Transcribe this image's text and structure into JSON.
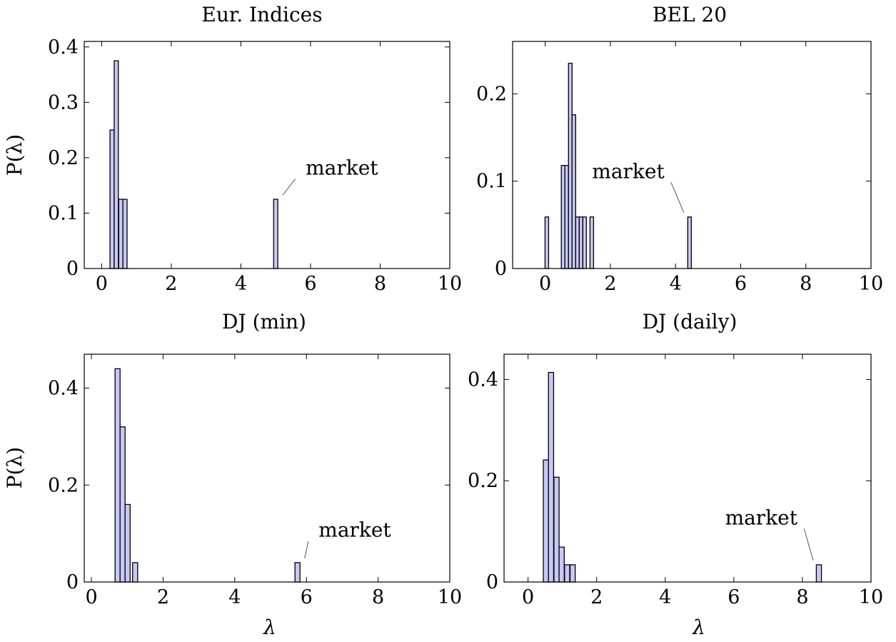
{
  "colors": {
    "bar_fill": "#c8c8f7",
    "bar_stroke": "#000000",
    "leader": "#555555"
  },
  "chart_data": [
    {
      "type": "bar",
      "title": "Eur. Indices",
      "xlabel": "DJ (min)",
      "ylabel": "P(λ)",
      "xlim": [
        -0.5,
        10
      ],
      "ylim": [
        0,
        0.41
      ],
      "xticks": [
        0,
        2,
        4,
        6,
        8,
        10
      ],
      "xtick_labels": [
        "0",
        "2",
        "4",
        "6",
        "8",
        "10"
      ],
      "yticks": [
        0,
        0.1,
        0.2,
        0.3,
        0.4
      ],
      "ytick_labels": [
        "0",
        "0.1",
        "0.2",
        "0.3",
        "0.4"
      ],
      "bar_width": 0.12,
      "x": [
        0.3,
        0.42,
        0.55,
        0.67,
        5.0
      ],
      "values": [
        0.25,
        0.375,
        0.125,
        0.125,
        0.125
      ],
      "annotation": {
        "text": "market",
        "x": 5.0,
        "y": 0.125,
        "text_x": 6.9,
        "text_y": 0.18
      }
    },
    {
      "type": "bar",
      "title": "BEL 20",
      "xlabel": "DJ (daily)",
      "ylabel": "",
      "xlim": [
        -1,
        10
      ],
      "ylim": [
        0,
        0.26
      ],
      "xticks": [
        0,
        2,
        4,
        6,
        8,
        10
      ],
      "xtick_labels": [
        "0",
        "2",
        "4",
        "6",
        "8",
        "10"
      ],
      "yticks": [
        0,
        0.1,
        0.2
      ],
      "ytick_labels": [
        "0",
        "0.1",
        "0.2"
      ],
      "bar_width": 0.11,
      "x": [
        0.05,
        0.55,
        0.66,
        0.77,
        0.88,
        0.99,
        1.1,
        1.21,
        1.43,
        4.43
      ],
      "values": [
        0.059,
        0.118,
        0.118,
        0.235,
        0.176,
        0.059,
        0.059,
        0.059,
        0.059,
        0.059
      ],
      "annotation": {
        "text": "market",
        "x": 4.43,
        "y": 0.059,
        "text_x": 2.55,
        "text_y": 0.11
      }
    },
    {
      "type": "bar",
      "title": "",
      "xlabel": "λ",
      "ylabel": "P(λ)",
      "xlim": [
        -0.2,
        10
      ],
      "ylim": [
        0,
        0.47
      ],
      "xticks": [
        0,
        2,
        4,
        6,
        8,
        10
      ],
      "xtick_labels": [
        "0",
        "2",
        "4",
        "6",
        "8",
        "10"
      ],
      "yticks": [
        0,
        0.2,
        0.4
      ],
      "ytick_labels": [
        "0",
        "0.2",
        "0.4"
      ],
      "bar_width": 0.14,
      "x": [
        0.73,
        0.87,
        1.01,
        1.22,
        5.75
      ],
      "values": [
        0.44,
        0.32,
        0.16,
        0.04,
        0.04
      ],
      "annotation": {
        "text": "market",
        "x": 5.75,
        "y": 0.04,
        "text_x": 7.35,
        "text_y": 0.105
      }
    },
    {
      "type": "bar",
      "title": "",
      "xlabel": "λ",
      "ylabel": "",
      "xlim": [
        -0.7,
        10
      ],
      "ylim": [
        0,
        0.45
      ],
      "xticks": [
        0,
        2,
        4,
        6,
        8,
        10
      ],
      "xtick_labels": [
        "0",
        "2",
        "4",
        "6",
        "8",
        "10"
      ],
      "yticks": [
        0,
        0.2,
        0.4
      ],
      "ytick_labels": [
        "0",
        "0.2",
        "0.4"
      ],
      "bar_width": 0.15,
      "x": [
        0.52,
        0.67,
        0.83,
        0.98,
        1.14,
        1.3,
        8.48
      ],
      "values": [
        0.241,
        0.414,
        0.207,
        0.069,
        0.034,
        0.034,
        0.034
      ],
      "annotation": {
        "text": "market",
        "x": 8.48,
        "y": 0.034,
        "text_x": 6.8,
        "text_y": 0.125
      }
    }
  ]
}
